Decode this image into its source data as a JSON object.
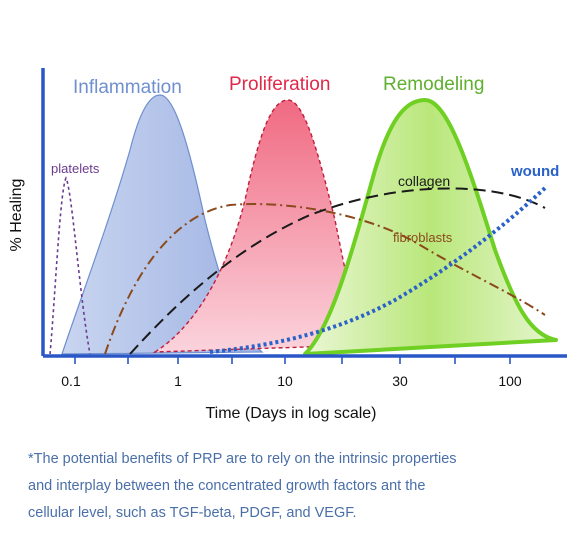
{
  "chart_data": {
    "type": "area",
    "ylabel": "% Healing",
    "xlabel": "Time (Days in log scale)",
    "x_scale": "log",
    "x_ticks": [
      "0.1",
      "1",
      "10",
      "30",
      "100"
    ],
    "phases": [
      {
        "name": "Inflammation",
        "color": "#6f8fcf"
      },
      {
        "name": "Proliferation",
        "color": "#e0284a"
      },
      {
        "name": "Remodeling",
        "color": "#5fb02e"
      }
    ],
    "curves": [
      {
        "name": "platelets",
        "color": "#6b3b8f"
      },
      {
        "name": "collagen",
        "color": "#222222"
      },
      {
        "name": "fibroblasts",
        "color": "#8b4a1c"
      },
      {
        "name": "wound",
        "color": "#2a62c9"
      }
    ]
  },
  "note": {
    "lines": [
      "*The potential benefits of PRP are to rely on the intrinsic properties",
      "and interplay between the concentrated growth factors ant the",
      "cellular level, such as TGF-beta, PDGF, and VEGF."
    ]
  }
}
